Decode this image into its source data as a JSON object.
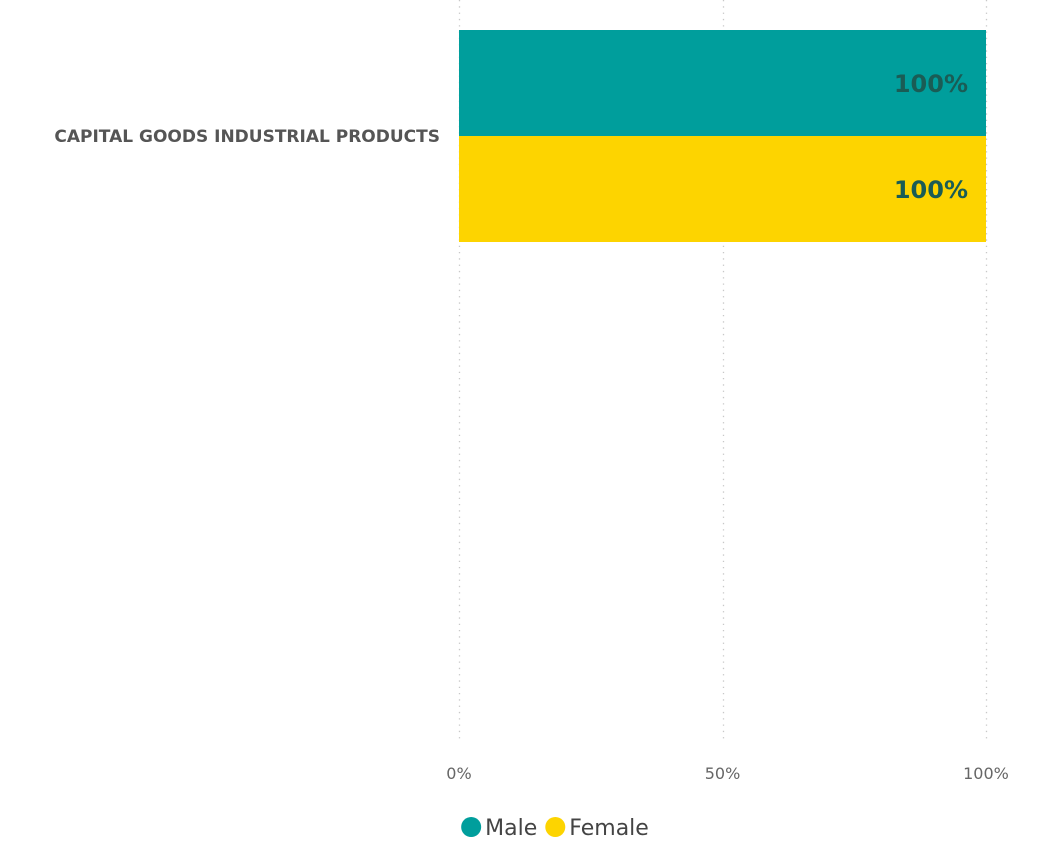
{
  "chart_data": {
    "type": "bar",
    "orientation": "horizontal",
    "categories": [
      "CAPITAL GOODS INDUSTRIAL PRODUCTS"
    ],
    "series": [
      {
        "name": "Male",
        "values": [
          100
        ],
        "labels": [
          "100%"
        ],
        "color": "#009e9c"
      },
      {
        "name": "Female",
        "values": [
          100
        ],
        "labels": [
          "100%"
        ],
        "color": "#fdd400"
      }
    ],
    "xlim": [
      0,
      100
    ],
    "x_ticks": [
      0,
      50,
      100
    ],
    "x_tick_labels": [
      "0%",
      "50%",
      "100%"
    ],
    "grid": true,
    "legend": "bottom"
  }
}
